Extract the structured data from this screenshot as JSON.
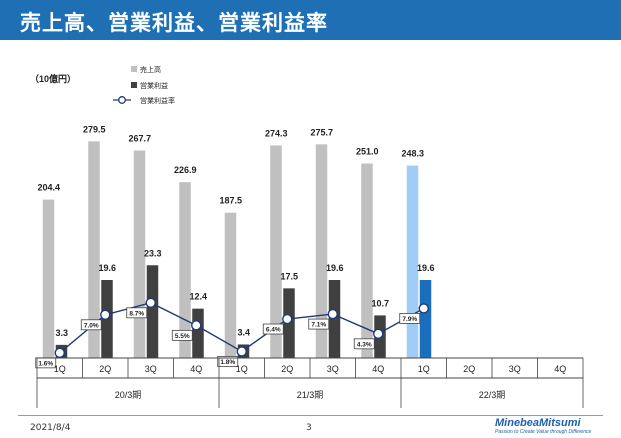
{
  "title": "売上高、営業利益、営業利益率",
  "footer": {
    "date": "2021/8/4",
    "page": "3",
    "logo": "MinebeaMitsumi",
    "tagline": "Passion to Create Value through Difference"
  },
  "colors": {
    "sales": "#c0c0c0",
    "sales_highlight": "#9fcdf5",
    "op_income": "#404040",
    "op_income_highlight": "#1a6ebd",
    "margin_line": "#1f3a7a",
    "header": "#1f6fb5"
  },
  "chart_data": {
    "type": "bar",
    "unit_label": "（10億円）",
    "legend": [
      "売上高",
      "営業利益",
      "営業利益率"
    ],
    "legend_position": "top-left",
    "categories": [
      "1Q",
      "2Q",
      "3Q",
      "4Q",
      "1Q",
      "2Q",
      "3Q",
      "4Q",
      "1Q",
      "2Q",
      "3Q",
      "4Q"
    ],
    "groups": [
      {
        "label": "20/3期",
        "span": 4
      },
      {
        "label": "21/3期",
        "span": 4
      },
      {
        "label": "22/3期",
        "span": 4
      }
    ],
    "series": [
      {
        "name": "売上高",
        "type": "bar",
        "values": [
          204.4,
          279.5,
          267.7,
          226.9,
          187.5,
          274.3,
          275.7,
          251.0,
          248.3,
          null,
          null,
          null
        ],
        "labels": [
          "204.4",
          "279.5",
          "267.7",
          "226.9",
          "187.5",
          "274.3",
          "275.7",
          "251.0",
          "248.3",
          "",
          "",
          ""
        ]
      },
      {
        "name": "営業利益",
        "type": "bar",
        "values": [
          3.3,
          19.6,
          23.3,
          12.4,
          3.4,
          17.5,
          19.6,
          10.7,
          19.6,
          null,
          null,
          null
        ],
        "labels": [
          "3.3",
          "19.6",
          "23.3",
          "12.4",
          "3.4",
          "17.5",
          "19.6",
          "10.7",
          "19.6",
          "",
          "",
          ""
        ]
      },
      {
        "name": "営業利益率",
        "type": "line",
        "values": [
          1.6,
          7.0,
          8.7,
          5.5,
          1.8,
          6.4,
          7.1,
          4.3,
          7.9,
          null,
          null,
          null
        ],
        "labels": [
          "1.6%",
          "7.0%",
          "8.7%",
          "5.5%",
          "1.8%",
          "6.4%",
          "7.1%",
          "4.3%",
          "7.9%",
          "",
          "",
          ""
        ]
      }
    ],
    "highlight_index": 8,
    "ylim": [
      0,
      300
    ],
    "grid": false
  }
}
